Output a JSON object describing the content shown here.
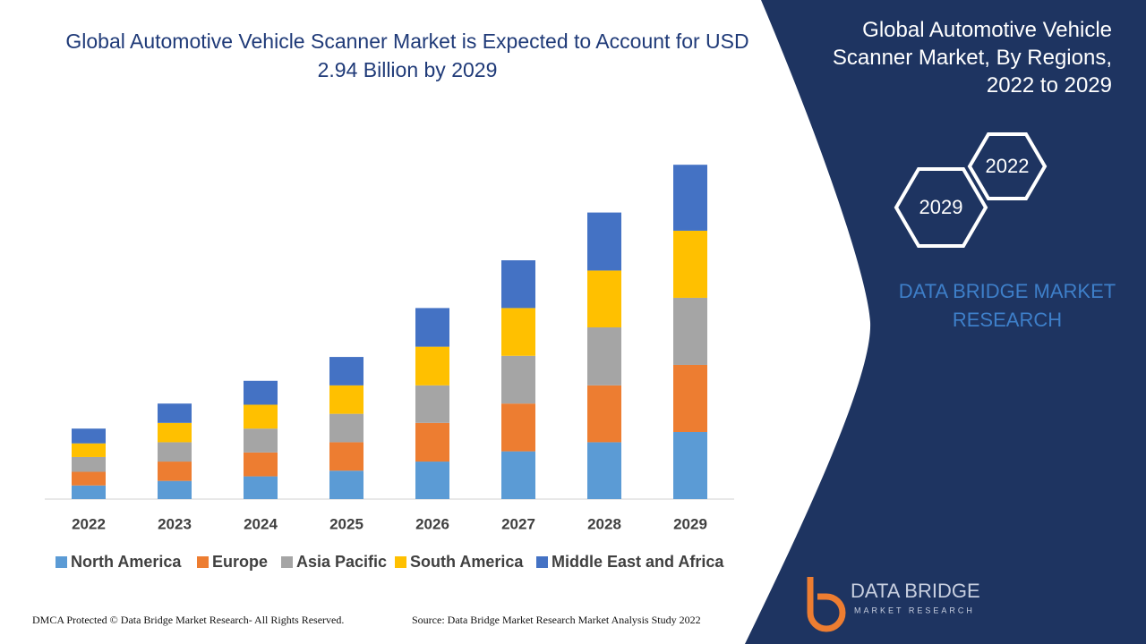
{
  "chart_data": {
    "type": "stacked-bar",
    "title": "Global Automotive Vehicle Scanner Market is Expected to Account for USD 2.94 Billion by 2029",
    "categories": [
      "2022",
      "2023",
      "2024",
      "2025",
      "2026",
      "2027",
      "2028",
      "2029"
    ],
    "series": [
      {
        "name": "North America",
        "color": "#5b9bd5",
        "values": [
          0.12,
          0.16,
          0.2,
          0.25,
          0.33,
          0.42,
          0.5,
          0.59
        ]
      },
      {
        "name": "Europe",
        "color": "#ed7d31",
        "values": [
          0.12,
          0.17,
          0.21,
          0.25,
          0.34,
          0.42,
          0.5,
          0.59
        ]
      },
      {
        "name": "Asia Pacific",
        "color": "#a5a5a5",
        "values": [
          0.13,
          0.17,
          0.21,
          0.25,
          0.33,
          0.42,
          0.51,
          0.59
        ]
      },
      {
        "name": "South America",
        "color": "#ffc000",
        "values": [
          0.12,
          0.17,
          0.21,
          0.25,
          0.34,
          0.42,
          0.5,
          0.59
        ]
      },
      {
        "name": "Middle East and Africa",
        "color": "#4472c4",
        "values": [
          0.13,
          0.17,
          0.21,
          0.25,
          0.34,
          0.42,
          0.51,
          0.58
        ]
      }
    ],
    "ylim": [
      0,
      3.5
    ]
  },
  "panel": {
    "title": "Global Automotive Vehicle Scanner Market, By Regions, 2022 to 2029",
    "hex_start": "2022",
    "hex_end": "2029",
    "brand": "DATA BRIDGE MARKET RESEARCH"
  },
  "logo": {
    "name": "DATA BRIDGE",
    "tagline": "MARKET RESEARCH"
  },
  "footer": {
    "left": "DMCA Protected © Data Bridge Market Research- All Rights Reserved.",
    "right": "Source: Data Bridge Market Research Market Analysis Study 2022"
  }
}
